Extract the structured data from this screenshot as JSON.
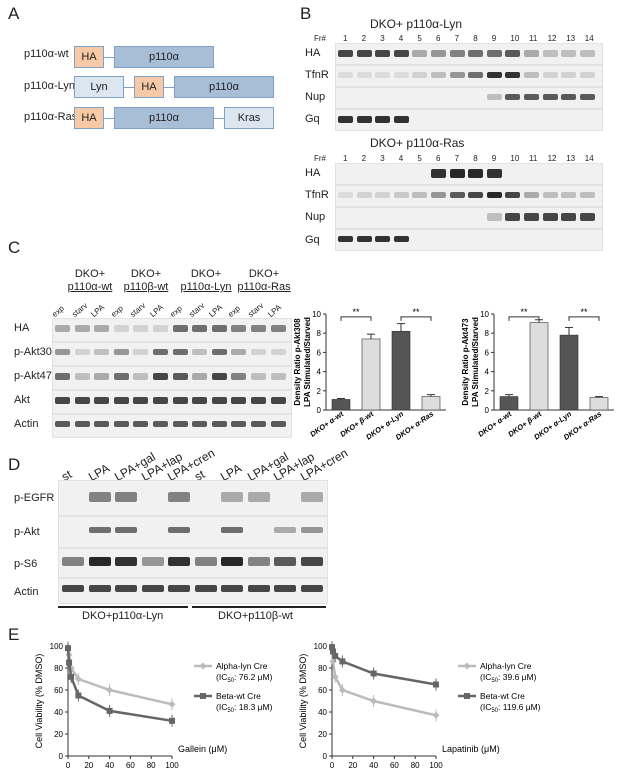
{
  "panels": {
    "A": "A",
    "B": "B",
    "C": "C",
    "D": "D",
    "E": "E"
  },
  "panelA": {
    "rows": [
      {
        "name": "p110α-wt",
        "boxes": [
          "HA",
          "p110α"
        ]
      },
      {
        "name": "p110α-Lyn",
        "boxes": [
          "Lyn",
          "HA",
          "p110α"
        ]
      },
      {
        "name": "p110α-Ras",
        "boxes": [
          "HA",
          "p110α",
          "Kras"
        ]
      }
    ]
  },
  "panelB": {
    "top_title": "DKO+ p110α-Lyn",
    "bottom_title": "DKO+ p110α-Ras",
    "fr_label": "Fr#",
    "fractions": [
      "1",
      "2",
      "3",
      "4",
      "5",
      "6",
      "7",
      "8",
      "9",
      "10",
      "11",
      "12",
      "13",
      "14"
    ],
    "rows": [
      "HA",
      "TfnR",
      "Nup",
      "Gq"
    ]
  },
  "panelC": {
    "groups": [
      "DKO+\np110α-wt",
      "DKO+\np110β-wt",
      "DKO+\np110α-Lyn",
      "DKO+\np110α-Ras"
    ],
    "group_lines": [
      [
        "DKO+",
        "p110α-wt"
      ],
      [
        "DKO+",
        "p110β-wt"
      ],
      [
        "DKO+",
        "p110α-Lyn"
      ],
      [
        "DKO+",
        "p110α-Ras"
      ]
    ],
    "lanes": [
      "exp",
      "starv",
      "LPA",
      "exp",
      "starv",
      "LPA",
      "exp",
      "starv",
      "LPA",
      "exp",
      "starv",
      "LPA"
    ],
    "rows": [
      "HA",
      "p-Akt308",
      "p-Akt473",
      "Akt",
      "Actin"
    ],
    "chart1": {
      "ylabel": "Density Ratio p-Akt308\nLPA Stimulated/Starved",
      "ticks": [
        "0",
        "2",
        "4",
        "6",
        "8",
        "10"
      ],
      "categories": [
        "DKO+ α-wt",
        "DKO+ β-wt",
        "DKO+ α-Lyn",
        "DKO+ α-Ras"
      ],
      "sig": "**"
    },
    "chart2": {
      "ylabel": "Density Ratio p-Akt473\nLPA Stimulated/Starved",
      "ticks": [
        "0",
        "2",
        "4",
        "6",
        "8",
        "10"
      ],
      "categories": [
        "DKO+ α-wt",
        "DKO+ β-wt",
        "DKO+ α-Lyn",
        "DKO+ α-Ras"
      ],
      "sig": "**"
    }
  },
  "panelD": {
    "lanes": [
      "st",
      "LPA",
      "LPA+gal",
      "LPA+lap",
      "LPA+cren",
      "st",
      "LPA",
      "LPA+gal",
      "LPA+lap",
      "LPA+cren"
    ],
    "rows": [
      "p-EGFR",
      "p-Akt",
      "p-S6",
      "Actin"
    ],
    "group1": "DKO+p110α-Lyn",
    "group2": "DKO+p110β-wt"
  },
  "panelE": {
    "ylabel": "Cell Viability (% DMSO)",
    "yticks": [
      "0",
      "20",
      "40",
      "60",
      "80",
      "100"
    ],
    "xticks": [
      "0",
      "20",
      "40",
      "60",
      "80",
      "100"
    ],
    "left": {
      "xlabel": "Gallein (μM)",
      "legend1": "Alpha-lyn Cre",
      "legend1b": "(IC",
      "legend1sub": "50",
      "legend1c": ": 76.2 μM)",
      "legend2": "Beta-wt Cre",
      "legend2b": "(IC",
      "legend2sub": "50",
      "legend2c": ": 18.3 μM)"
    },
    "right": {
      "xlabel": "Lapatinib (μM)",
      "legend1": "Alpha-lyn Cre",
      "legend1b": "(IC",
      "legend1sub": "50",
      "legend1c": ": 39.6 μM)",
      "legend2": "Beta-wt Cre",
      "legend2b": "(IC",
      "legend2sub": "50",
      "legend2c": ": 119.6 μM)"
    }
  },
  "chart_data": [
    {
      "type": "bar",
      "ylabel": "Density Ratio p-Akt308 LPA Stimulated/Starved",
      "categories": [
        "DKO+ α-wt",
        "DKO+ β-wt",
        "DKO+ α-Lyn",
        "DKO+ α-Ras"
      ],
      "values": [
        1.1,
        7.4,
        8.2,
        1.4
      ],
      "errors": [
        0.1,
        0.5,
        0.8,
        0.2
      ],
      "ylim": [
        0,
        10
      ],
      "colors": [
        "#555555",
        "#dddddd",
        "#555555",
        "#dddddd"
      ]
    },
    {
      "type": "bar",
      "ylabel": "Density Ratio p-Akt473 LPA Stimulated/Starved",
      "categories": [
        "DKO+ α-wt",
        "DKO+ β-wt",
        "DKO+ α-Lyn",
        "DKO+ α-Ras"
      ],
      "values": [
        1.4,
        9.1,
        7.8,
        1.3
      ],
      "errors": [
        0.2,
        0.3,
        0.8,
        0.1
      ],
      "ylim": [
        0,
        10
      ],
      "colors": [
        "#555555",
        "#dddddd",
        "#555555",
        "#dddddd"
      ]
    },
    {
      "type": "line",
      "xlabel": "Gallein (μM)",
      "ylabel": "Cell Viability (% DMSO)",
      "xlim": [
        0,
        100
      ],
      "ylim": [
        0,
        100
      ],
      "series": [
        {
          "name": "Alpha-lyn Cre",
          "x": [
            0,
            1,
            3,
            10,
            40,
            100
          ],
          "y": [
            99,
            92,
            80,
            70,
            60,
            47
          ],
          "color": "#bbbbbb"
        },
        {
          "name": "Beta-wt Cre",
          "x": [
            0,
            1,
            3,
            10,
            40,
            100
          ],
          "y": [
            98,
            85,
            72,
            55,
            41,
            32
          ],
          "color": "#666666"
        }
      ]
    },
    {
      "type": "line",
      "xlabel": "Lapatinib (μM)",
      "ylabel": "Cell Viability (% DMSO)",
      "xlim": [
        0,
        100
      ],
      "ylim": [
        0,
        100
      ],
      "series": [
        {
          "name": "Alpha-lyn Cre",
          "x": [
            0,
            1,
            3,
            10,
            40,
            100
          ],
          "y": [
            97,
            86,
            72,
            60,
            50,
            37
          ],
          "color": "#bbbbbb"
        },
        {
          "name": "Beta-wt Cre",
          "x": [
            0,
            1,
            3,
            10,
            40,
            100
          ],
          "y": [
            99,
            95,
            91,
            86,
            75,
            65
          ],
          "color": "#666666"
        }
      ]
    }
  ]
}
